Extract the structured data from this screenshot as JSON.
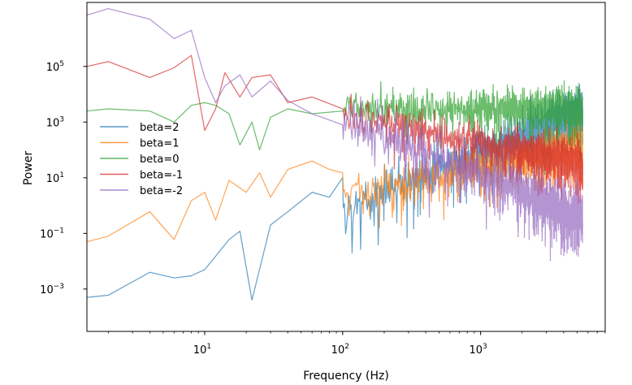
{
  "chart_data": {
    "type": "line",
    "title": "",
    "xlabel": "Frequency (Hz)",
    "ylabel": "Power",
    "xscale": "log",
    "yscale": "log",
    "xlim": [
      1.4,
      8000
    ],
    "ylim": [
      3e-05,
      20000000
    ],
    "grid": false,
    "legend_loc": "center-left",
    "x_ticks": [
      {
        "value": 10,
        "base": "10",
        "exp": "1"
      },
      {
        "value": 100,
        "base": "10",
        "exp": "2"
      },
      {
        "value": 1000,
        "base": "10",
        "exp": "3"
      }
    ],
    "y_ticks": [
      {
        "value": 0.001,
        "base": "10",
        "exp": "−3"
      },
      {
        "value": 0.1,
        "base": "10",
        "exp": "−1"
      },
      {
        "value": 10,
        "base": "10",
        "exp": "1"
      },
      {
        "value": 1000,
        "base": "10",
        "exp": "3"
      },
      {
        "value": 100000,
        "base": "10",
        "exp": "5"
      }
    ],
    "f_max": 5500,
    "series": [
      {
        "name": "beta=2",
        "label": "beta=2",
        "color": "#1f77b4",
        "slope": 2,
        "intercept_log10": -4.1,
        "spread": 0.9,
        "anchors": [
          [
            1.4,
            0.0005
          ],
          [
            2,
            0.0006
          ],
          [
            4,
            0.004
          ],
          [
            6,
            0.0025
          ],
          [
            8,
            0.003
          ],
          [
            10,
            0.005
          ],
          [
            12,
            0.015
          ],
          [
            15,
            0.06
          ],
          [
            18,
            0.12
          ],
          [
            22,
            0.0004
          ],
          [
            30,
            0.2
          ],
          [
            40,
            0.6
          ],
          [
            60,
            3
          ],
          [
            80,
            2
          ],
          [
            100,
            10
          ]
        ]
      },
      {
        "name": "beta=1",
        "label": "beta=1",
        "color": "#ff7f0e",
        "slope": 1,
        "intercept_log10": -1.6,
        "spread": 0.8,
        "anchors": [
          [
            1.4,
            0.05
          ],
          [
            2,
            0.08
          ],
          [
            4,
            0.6
          ],
          [
            6,
            0.06
          ],
          [
            8,
            1.5
          ],
          [
            10,
            3
          ],
          [
            12,
            0.3
          ],
          [
            15,
            8
          ],
          [
            20,
            3
          ],
          [
            25,
            15
          ],
          [
            30,
            2
          ],
          [
            40,
            20
          ],
          [
            60,
            40
          ],
          [
            80,
            20
          ],
          [
            100,
            15
          ]
        ]
      },
      {
        "name": "beta=0",
        "label": "beta=0",
        "color": "#2ca02c",
        "slope": 0,
        "intercept_log10": 3.5,
        "spread": 0.7,
        "anchors": [
          [
            1.4,
            2500
          ],
          [
            2,
            3000
          ],
          [
            4,
            2500
          ],
          [
            6,
            1000
          ],
          [
            8,
            4000
          ],
          [
            10,
            5000
          ],
          [
            12,
            4000
          ],
          [
            15,
            2000
          ],
          [
            18,
            150
          ],
          [
            22,
            1000
          ],
          [
            25,
            100
          ],
          [
            30,
            1500
          ],
          [
            40,
            3000
          ],
          [
            60,
            2000
          ],
          [
            100,
            2500
          ]
        ]
      },
      {
        "name": "beta=-1",
        "label": "beta=-1",
        "color": "#d62728",
        "slope": -1,
        "intercept_log10": 5.3,
        "spread": 0.7,
        "anchors": [
          [
            1.4,
            100000
          ],
          [
            2,
            150000
          ],
          [
            4,
            40000
          ],
          [
            6,
            90000
          ],
          [
            8,
            250000
          ],
          [
            10,
            500
          ],
          [
            12,
            3000
          ],
          [
            14,
            60000
          ],
          [
            18,
            8000
          ],
          [
            22,
            40000
          ],
          [
            30,
            50000
          ],
          [
            40,
            5000
          ],
          [
            60,
            8000
          ],
          [
            100,
            3000
          ]
        ]
      },
      {
        "name": "beta=-2",
        "label": "beta=-2",
        "color": "#9467bd",
        "slope": -2,
        "intercept_log10": 7.1,
        "spread": 0.9,
        "anchors": [
          [
            1.4,
            7000000
          ],
          [
            2,
            12000000
          ],
          [
            4,
            5000000
          ],
          [
            6,
            1000000
          ],
          [
            8,
            2000000
          ],
          [
            10,
            40000
          ],
          [
            12,
            5000
          ],
          [
            14,
            20000
          ],
          [
            18,
            50000
          ],
          [
            22,
            8000
          ],
          [
            30,
            30000
          ],
          [
            40,
            6000
          ],
          [
            60,
            2000
          ],
          [
            100,
            800
          ]
        ]
      }
    ]
  }
}
